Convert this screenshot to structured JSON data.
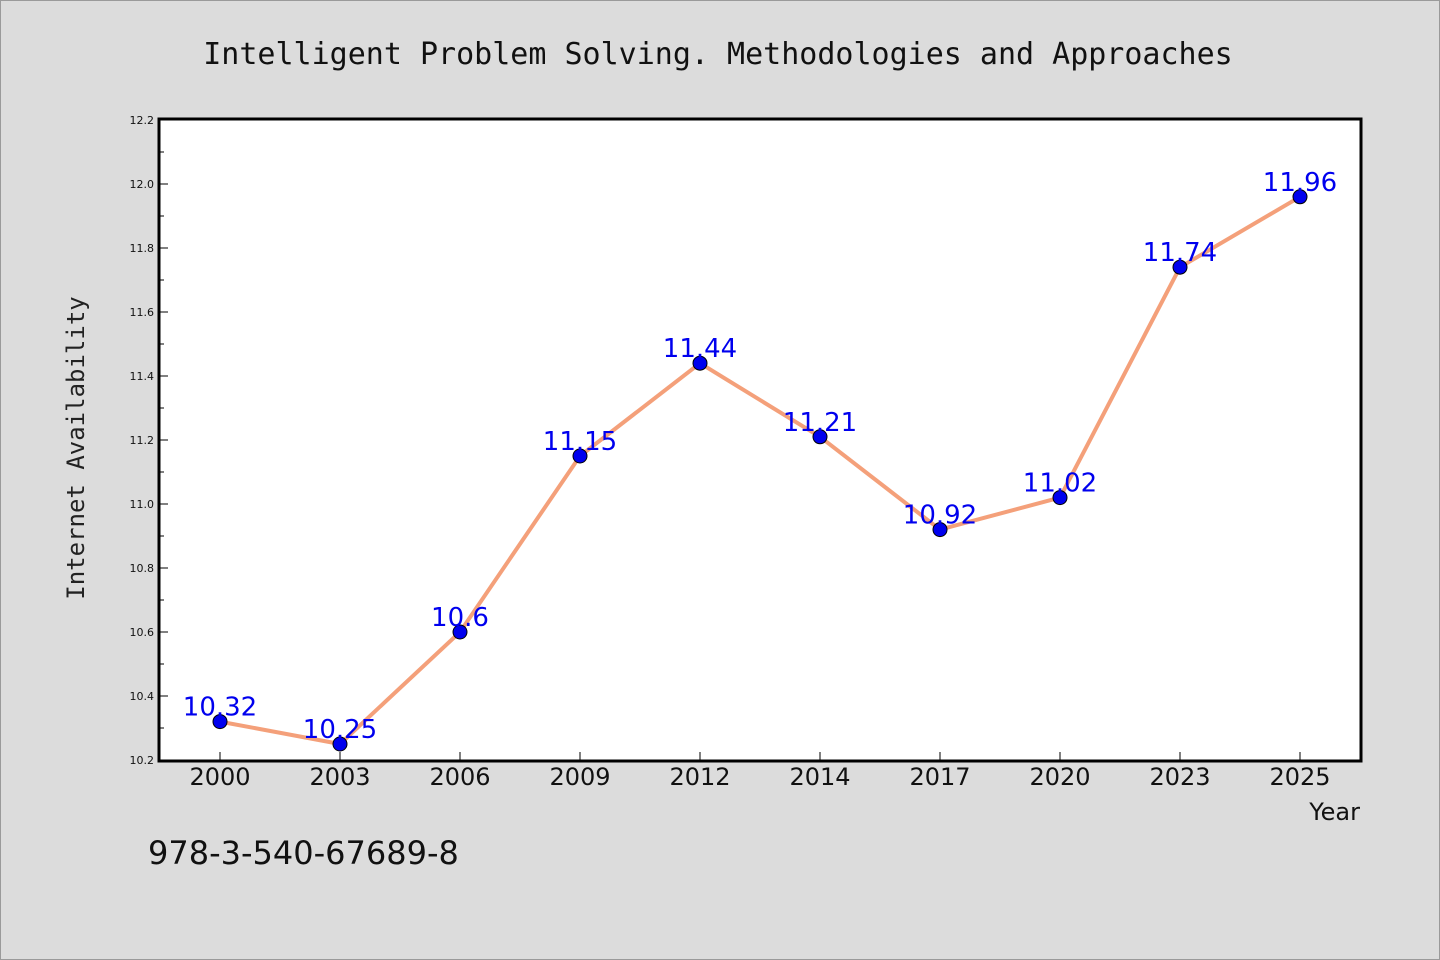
{
  "chart_data": {
    "type": "line",
    "title": "Intelligent Problem Solving. Methodologies and Approaches",
    "xlabel": "Year",
    "ylabel": "Internet Availability",
    "categories": [
      "2000",
      "2003",
      "2006",
      "2009",
      "2012",
      "2014",
      "2017",
      "2020",
      "2023",
      "2025"
    ],
    "series": [
      {
        "values": [
          10.32,
          10.25,
          10.6,
          11.15,
          11.44,
          11.21,
          10.92,
          11.02,
          11.74,
          11.96
        ],
        "data_labels": [
          "10.32",
          "10.25",
          "10.6",
          "11.15",
          "11.44",
          "11.21",
          "10.92",
          "11.02",
          "11.74",
          "11.96"
        ],
        "line_color": "#f4a07a",
        "marker_color": "#0000ee"
      }
    ],
    "ylim": [
      10.2,
      12.2
    ],
    "yticks": [
      "10.2",
      "10.4",
      "10.6",
      "10.8",
      "11.0",
      "11.2",
      "11.4",
      "11.6",
      "11.8",
      "12.0",
      "12.2"
    ],
    "grid": false,
    "legend": "none"
  },
  "footer": {
    "isbn": "978-3-540-67689-8"
  }
}
